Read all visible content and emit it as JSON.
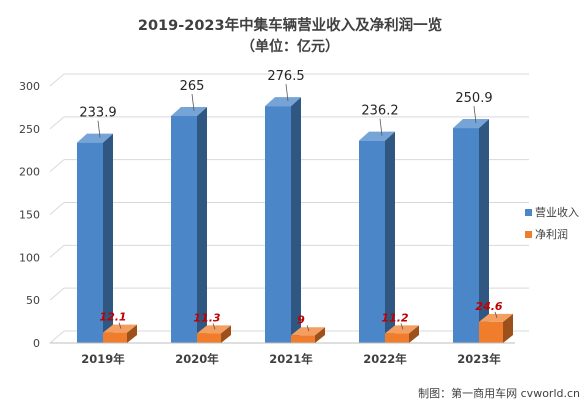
{
  "chart_data": {
    "type": "bar",
    "title": "2019-2023年中集车辆营业收入及净利润一览",
    "subtitle": "（单位：亿元）",
    "categories": [
      "2019年",
      "2020年",
      "2021年",
      "2022年",
      "2023年"
    ],
    "series": [
      {
        "name": "营业收入",
        "values": [
          233.9,
          265,
          276.5,
          236.2,
          250.9
        ],
        "labels": [
          "233.9",
          "265",
          "276.5",
          "236.2",
          "250.9"
        ],
        "color": "#4a86c8"
      },
      {
        "name": "净利润",
        "values": [
          12.1,
          11.3,
          9,
          11.2,
          24.6
        ],
        "labels": [
          "12.1",
          "11.3",
          "9",
          "11.2",
          "24.6"
        ],
        "color": "#f07d2c"
      }
    ],
    "ylim": [
      0,
      300
    ],
    "yticks": [
      0,
      50,
      100,
      150,
      200,
      250,
      300
    ],
    "grid": true,
    "legend": "right",
    "style": "3d-column"
  },
  "credit": "制图：第一商用车网 cvworld.cn"
}
